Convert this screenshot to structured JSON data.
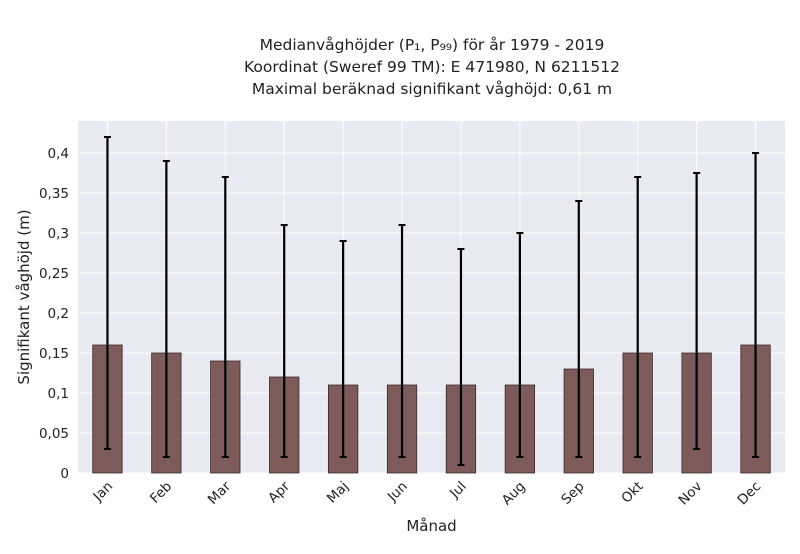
{
  "chart_data": {
    "type": "bar",
    "title": [
      "Medianvåghöjder (P₁, P₉₉) för år 1979 - 2019",
      "Koordinat (Sweref 99 TM): E 471980, N 6211512",
      "Maximal beräknad signifikant våghöjd: 0,61 m"
    ],
    "xlabel": "Månad",
    "ylabel": "Signifikant våghöjd (m)",
    "categories": [
      "Jan",
      "Feb",
      "Mar",
      "Apr",
      "Maj",
      "Jun",
      "Jul",
      "Aug",
      "Sep",
      "Okt",
      "Nov",
      "Dec"
    ],
    "values": [
      0.16,
      0.15,
      0.14,
      0.12,
      0.11,
      0.11,
      0.11,
      0.11,
      0.13,
      0.15,
      0.15,
      0.16
    ],
    "error_low": [
      0.03,
      0.02,
      0.02,
      0.02,
      0.02,
      0.02,
      0.01,
      0.02,
      0.02,
      0.02,
      0.03,
      0.02
    ],
    "error_high": [
      0.42,
      0.39,
      0.37,
      0.31,
      0.29,
      0.31,
      0.28,
      0.3,
      0.34,
      0.37,
      0.375,
      0.4
    ],
    "ylim": [
      0,
      0.44
    ],
    "yticks": [
      0,
      0.05,
      0.1,
      0.15,
      0.2,
      0.25,
      0.3,
      0.35,
      0.4
    ],
    "ytick_labels": [
      "0",
      "0,05",
      "0,1",
      "0,15",
      "0,2",
      "0,25",
      "0,3",
      "0,35",
      "0,4"
    ],
    "grid": true,
    "colors": {
      "bar_fill": "#7d5b5b",
      "bar_edge": "#3a2a2a",
      "error_bar": "#000000",
      "plot_background": "#eaeaf2",
      "grid": "#ffffff"
    }
  }
}
